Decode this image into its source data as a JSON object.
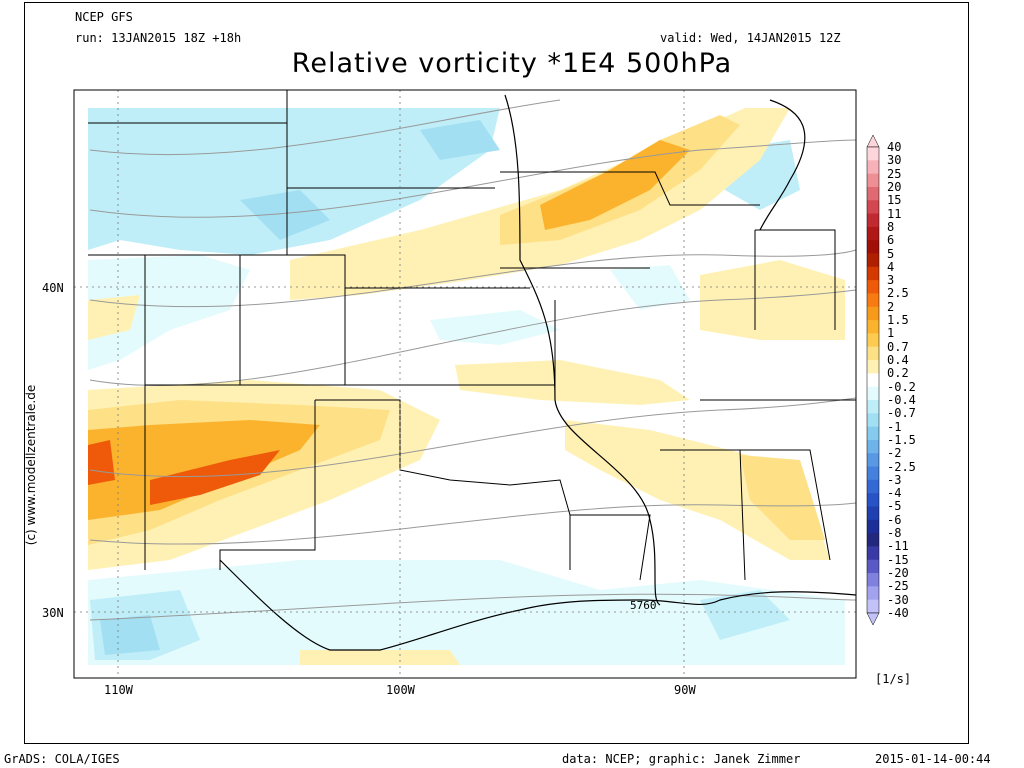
{
  "header": {
    "model": "NCEP GFS",
    "run": "run: 13JAN2015 18Z +18h",
    "valid": "valid: Wed, 14JAN2015 12Z",
    "title": "Relative vorticity *1E4 500hPa"
  },
  "credit_vertical": "(c) www.modellzentrale.de",
  "footer": {
    "left": "GrADS: COLA/IGES",
    "center": "data: NCEP; graphic: Janek Zimmer",
    "right": "2015-01-14-00:44"
  },
  "map": {
    "lat_labels": [
      "40N",
      "30N"
    ],
    "lon_labels": [
      "110W",
      "100W",
      "90W"
    ],
    "contour_label": "5760"
  },
  "colorbar": {
    "unit": "[1/s]",
    "labels": [
      "40",
      "30",
      "25",
      "20",
      "15",
      "11",
      "8",
      "6",
      "5",
      "4",
      "3",
      "2.5",
      "2",
      "1.5",
      "1",
      "0.7",
      "0.4",
      "0.2",
      "-0.2",
      "-0.4",
      "-0.7",
      "-1",
      "-1.5",
      "-2",
      "-2.5",
      "-3",
      "-4",
      "-5",
      "-6",
      "-8",
      "-11",
      "-15",
      "-20",
      "-25",
      "-30",
      "-40"
    ],
    "colors": [
      "#ffd5dc",
      "#f7b1b8",
      "#ee8f96",
      "#e06a72",
      "#d24750",
      "#c22a31",
      "#b01818",
      "#a01008",
      "#b02000",
      "#d43a00",
      "#ee5a0a",
      "#f77b12",
      "#f79a1c",
      "#fbb32e",
      "#fdcb50",
      "#fee086",
      "#fff1b4",
      "#ffffff",
      "#e4fbfd",
      "#bfeef8",
      "#a2dff3",
      "#86cbee",
      "#6eb3ea",
      "#5898e4",
      "#4480dc",
      "#3468d4",
      "#2853c6",
      "#2040b0",
      "#1c2e98",
      "#22287e",
      "#3a3aa6",
      "#5a5ac6",
      "#8080de",
      "#a2a2ee",
      "#c2c2f8"
    ]
  },
  "legend_colors": {
    "positive_light": "#fff1b4",
    "positive_mid": "#fee086",
    "positive_strong": "#fbb32e",
    "positive_max": "#ee5a0a",
    "negative_light": "#e4fbfd",
    "negative_mid": "#bfeef8",
    "negative_strong": "#a2dff3"
  }
}
